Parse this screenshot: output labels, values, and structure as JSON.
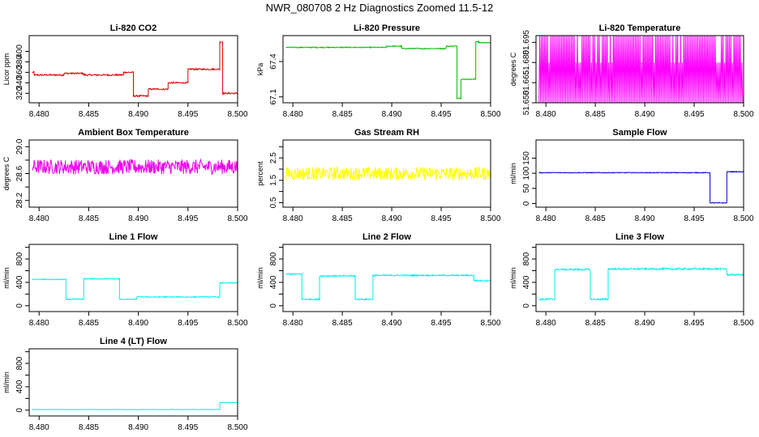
{
  "page_title": "NWR_080708  2 Hz Diagnostics Zoomed 11.5-12",
  "chart_data": [
    {
      "type": "line",
      "title": "Li-820 CO2",
      "ylabel": "Licor ppm",
      "xlabel": "",
      "color": "#dd0000",
      "xlim": [
        8.479,
        8.5
      ],
      "xticks": [
        8.48,
        8.485,
        8.49,
        8.495,
        8.5
      ],
      "xtick_labels": [
        "8.480",
        "8.485",
        "8.490",
        "8.495",
        "8.500"
      ],
      "ylim": [
        302,
        430
      ],
      "yticks": [
        320,
        340,
        360,
        380,
        400
      ],
      "ytick_labels": [
        "320",
        "340",
        "360",
        "380",
        "400"
      ],
      "noise": 1.5,
      "series": [
        {
          "x": [
            8.4793,
            8.4795,
            8.4795,
            8.4825,
            8.4825,
            8.4845,
            8.4845,
            8.4885,
            8.4885,
            8.4895,
            8.4895,
            8.491,
            8.491,
            8.493,
            8.493,
            8.495,
            8.495,
            8.4982,
            8.4982,
            8.4985,
            8.4985,
            8.5
          ],
          "y": [
            360,
            360,
            355,
            355,
            358,
            358,
            355,
            355,
            360,
            360,
            315,
            315,
            328,
            328,
            340,
            340,
            366,
            366,
            418,
            418,
            320,
            320
          ]
        }
      ]
    },
    {
      "type": "line",
      "title": "Li-820 Pressure",
      "ylabel": "kPa",
      "xlabel": "",
      "color": "#00bb00",
      "xlim": [
        8.479,
        8.5
      ],
      "xticks": [
        8.48,
        8.485,
        8.49,
        8.495,
        8.5
      ],
      "xtick_labels": [
        "8.480",
        "8.485",
        "8.490",
        "8.495",
        "8.500"
      ],
      "ylim": [
        67.05,
        67.62
      ],
      "yticks": [
        67.1,
        67.4
      ],
      "ytick_labels": [
        "67.1",
        "67.4"
      ],
      "noise": 0.004,
      "series": [
        {
          "x": [
            8.4793,
            8.4895,
            8.4895,
            8.491,
            8.491,
            8.4955,
            8.4955,
            8.4966,
            8.4966,
            8.497,
            8.497,
            8.4985,
            8.4985,
            8.4988,
            8.4988,
            8.5
          ],
          "y": [
            67.52,
            67.52,
            67.53,
            67.53,
            67.51,
            67.51,
            67.53,
            67.53,
            67.09,
            67.09,
            67.25,
            67.25,
            67.57,
            67.57,
            67.56,
            67.56
          ]
        }
      ]
    },
    {
      "type": "line",
      "title": "Li-820 Temperature",
      "ylabel": "degrees C",
      "xlabel": "",
      "color": "#ff00ff",
      "xlim": [
        8.479,
        8.5
      ],
      "xticks": [
        8.48,
        8.485,
        8.49,
        8.495,
        8.5
      ],
      "xtick_labels": [
        "8.480",
        "8.485",
        "8.490",
        "8.495",
        "8.500"
      ],
      "ylim": [
        51.65,
        51.7
      ],
      "yticks": [
        51.65,
        51.665,
        51.68,
        51.695
      ],
      "ytick_labels": [
        "51.650",
        "51.665",
        "51.680",
        "51.695"
      ],
      "binary": true,
      "series": [
        {
          "x": [
            8.4793,
            8.4999
          ],
          "y": [
            51.65,
            51.7
          ]
        }
      ]
    },
    {
      "type": "line",
      "title": "Ambient Box Temperature",
      "ylabel": "degrees C",
      "xlabel": "",
      "color": "#ee00ee",
      "xlim": [
        8.479,
        8.5
      ],
      "xticks": [
        8.48,
        8.485,
        8.49,
        8.495,
        8.5
      ],
      "xtick_labels": [
        "8.480",
        "8.485",
        "8.490",
        "8.495",
        "8.500"
      ],
      "ylim": [
        28.1,
        29.1
      ],
      "yticks": [
        28.2,
        28.6,
        29.0
      ],
      "ytick_labels": [
        "28.2",
        "28.6",
        "29.0"
      ],
      "yminor": [
        28.4,
        28.8
      ],
      "noise": 0.11,
      "series": [
        {
          "x": [
            8.4793,
            8.5
          ],
          "y": [
            28.7,
            28.7
          ]
        }
      ]
    },
    {
      "type": "line",
      "title": "Gas Stream RH",
      "ylabel": "percent",
      "xlabel": "",
      "color": "#ffff00",
      "xlim": [
        8.479,
        8.5
      ],
      "xticks": [
        8.48,
        8.485,
        8.49,
        8.495,
        8.5
      ],
      "xtick_labels": [
        "8.480",
        "8.485",
        "8.490",
        "8.495",
        "8.500"
      ],
      "ylim": [
        0.3,
        3.3
      ],
      "yticks": [
        0.5,
        1.5,
        2.5
      ],
      "ytick_labels": [
        "0.5",
        "1.5",
        "2.5"
      ],
      "yminor": [
        1.0,
        2.0,
        3.0
      ],
      "noise": 0.3,
      "series": [
        {
          "x": [
            8.4793,
            8.5
          ],
          "y": [
            1.8,
            1.8
          ]
        }
      ]
    },
    {
      "type": "line",
      "title": "Sample Flow",
      "ylabel": "ml/min",
      "xlabel": "",
      "color": "#0000cc",
      "xlim": [
        8.479,
        8.5
      ],
      "xticks": [
        8.48,
        8.485,
        8.49,
        8.495,
        8.5
      ],
      "xtick_labels": [
        "8.480",
        "8.485",
        "8.490",
        "8.495",
        "8.500"
      ],
      "ylim": [
        -12,
        210
      ],
      "yticks": [
        0,
        50,
        100,
        150
      ],
      "ytick_labels": [
        "0",
        "50",
        "100",
        "150"
      ],
      "noise": 1.2,
      "series": [
        {
          "x": [
            8.4793,
            8.4966,
            8.4966,
            8.4983,
            8.4983,
            8.5
          ],
          "y": [
            102,
            102,
            2,
            2,
            105,
            105
          ]
        }
      ]
    },
    {
      "type": "line",
      "title": "Line 1 Flow",
      "ylabel": "ml/min",
      "xlabel": "",
      "color": "#00eeee",
      "xlim": [
        8.479,
        8.5
      ],
      "xticks": [
        8.48,
        8.485,
        8.49,
        8.495,
        8.5
      ],
      "xtick_labels": [
        "8.480",
        "8.485",
        "8.490",
        "8.495",
        "8.500"
      ],
      "ylim": [
        -100,
        1050
      ],
      "yticks": [
        0,
        400,
        800
      ],
      "ytick_labels": [
        "0",
        "400",
        "800"
      ],
      "yminor": [
        200,
        600,
        1000
      ],
      "noise": 8,
      "series": [
        {
          "x": [
            8.4793,
            8.4827,
            8.4827,
            8.4845,
            8.4845,
            8.4881,
            8.4881,
            8.4898,
            8.4898,
            8.4982,
            8.4982,
            8.5
          ],
          "y": [
            450,
            450,
            110,
            110,
            460,
            460,
            110,
            110,
            150,
            150,
            390,
            390
          ]
        }
      ]
    },
    {
      "type": "line",
      "title": "Line 2 Flow",
      "ylabel": "ml/min",
      "xlabel": "",
      "color": "#00eeee",
      "xlim": [
        8.479,
        8.5
      ],
      "xticks": [
        8.48,
        8.485,
        8.49,
        8.495,
        8.5
      ],
      "xtick_labels": [
        "8.480",
        "8.485",
        "8.490",
        "8.495",
        "8.500"
      ],
      "ylim": [
        -100,
        1050
      ],
      "yticks": [
        0,
        400,
        800
      ],
      "ytick_labels": [
        "0",
        "400",
        "800"
      ],
      "yminor": [
        200,
        600,
        1000
      ],
      "noise": 12,
      "series": [
        {
          "x": [
            8.4793,
            8.4809,
            8.4809,
            8.4827,
            8.4827,
            8.4863,
            8.4863,
            8.4881,
            8.4881,
            8.4983,
            8.4983,
            8.5
          ],
          "y": [
            540,
            540,
            110,
            110,
            510,
            510,
            110,
            110,
            520,
            520,
            430,
            430
          ]
        }
      ]
    },
    {
      "type": "line",
      "title": "Line 3 Flow",
      "ylabel": "ml/min",
      "xlabel": "",
      "color": "#00eeee",
      "xlim": [
        8.479,
        8.5
      ],
      "xticks": [
        8.48,
        8.485,
        8.49,
        8.495,
        8.5
      ],
      "xtick_labels": [
        "8.480",
        "8.485",
        "8.490",
        "8.495",
        "8.500"
      ],
      "ylim": [
        -100,
        1050
      ],
      "yticks": [
        0,
        400,
        800
      ],
      "ytick_labels": [
        "0",
        "400",
        "800"
      ],
      "yminor": [
        200,
        600,
        1000
      ],
      "noise": 15,
      "series": [
        {
          "x": [
            8.4793,
            8.4809,
            8.4809,
            8.4845,
            8.4845,
            8.4863,
            8.4863,
            8.4983,
            8.4983,
            8.5
          ],
          "y": [
            110,
            110,
            620,
            620,
            110,
            110,
            630,
            630,
            530,
            530
          ]
        }
      ]
    },
    {
      "type": "line",
      "title": "Line 4 (LT) Flow",
      "ylabel": "ml/min",
      "xlabel": "",
      "color": "#00eeee",
      "xlim": [
        8.479,
        8.5
      ],
      "xticks": [
        8.48,
        8.485,
        8.49,
        8.495,
        8.5
      ],
      "xtick_labels": [
        "8.480",
        "8.485",
        "8.490",
        "8.495",
        "8.500"
      ],
      "ylim": [
        -100,
        1050
      ],
      "yticks": [
        0,
        400,
        800
      ],
      "ytick_labels": [
        "0",
        "400",
        "800"
      ],
      "yminor": [
        200,
        600,
        1000
      ],
      "noise": 3,
      "series": [
        {
          "x": [
            8.4793,
            8.4982,
            8.4982,
            8.5
          ],
          "y": [
            10,
            10,
            130,
            130
          ]
        }
      ]
    }
  ]
}
